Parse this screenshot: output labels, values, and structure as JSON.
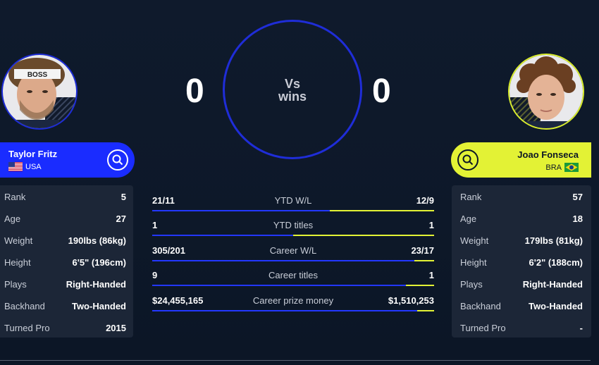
{
  "players": {
    "left": {
      "name": "Taylor Fritz",
      "country": "USA",
      "wins": "0",
      "stats": [
        {
          "label": "Rank",
          "value": "5"
        },
        {
          "label": "Age",
          "value": "27"
        },
        {
          "label": "Weight",
          "value": "190lbs (86kg)"
        },
        {
          "label": "Height",
          "value": "6'5\" (196cm)"
        },
        {
          "label": "Plays",
          "value": "Right-Handed"
        },
        {
          "label": "Backhand",
          "value": "Two-Handed"
        },
        {
          "label": "Turned Pro",
          "value": "2015"
        }
      ],
      "headband_text": "BOSS"
    },
    "right": {
      "name": "Joao Fonseca",
      "country": "BRA",
      "wins": "0",
      "stats": [
        {
          "label": "Rank",
          "value": "57"
        },
        {
          "label": "Age",
          "value": "18"
        },
        {
          "label": "Weight",
          "value": "179lbs (81kg)"
        },
        {
          "label": "Height",
          "value": "6'2\" (188cm)"
        },
        {
          "label": "Plays",
          "value": "Right-Handed"
        },
        {
          "label": "Backhand",
          "value": "Two-Handed"
        },
        {
          "label": "Turned Pro",
          "value": "-"
        }
      ]
    }
  },
  "vs": {
    "line1": "Vs",
    "line2": "wins"
  },
  "comparison": [
    {
      "label": "YTD W/L",
      "left": "21/11",
      "right": "12/9",
      "left_share": 0.63
    },
    {
      "label": "YTD titles",
      "left": "1",
      "right": "1",
      "left_share": 0.5
    },
    {
      "label": "Career W/L",
      "left": "305/201",
      "right": "23/17",
      "left_share": 0.93
    },
    {
      "label": "Career titles",
      "left": "9",
      "right": "1",
      "left_share": 0.9
    },
    {
      "label": "Career prize money",
      "left": "$24,455,165",
      "right": "$1,510,253",
      "left_share": 0.94
    }
  ],
  "colors": {
    "left_accent": "#1a2cff",
    "right_accent": "#e3f235",
    "background": "#0f1a2c",
    "panel": "#1c2637"
  },
  "icons": {
    "search": "search-icon",
    "usa_flag": "usa-flag-icon",
    "brazil_flag": "brazil-flag-icon"
  }
}
